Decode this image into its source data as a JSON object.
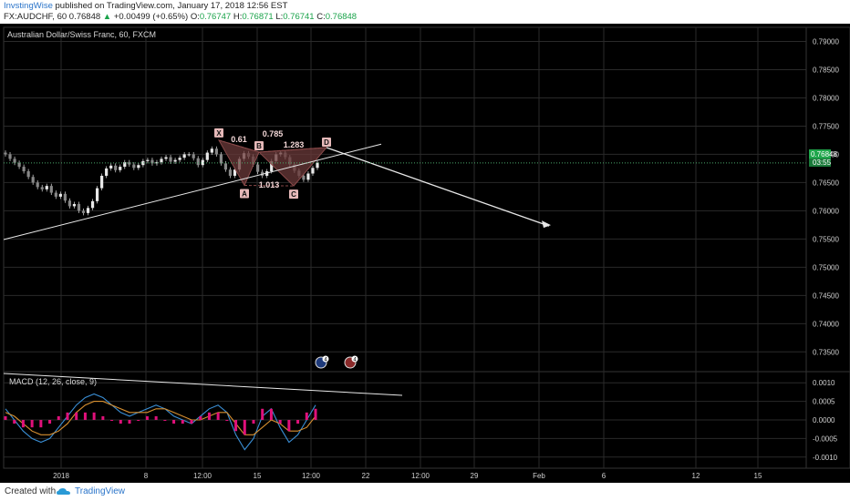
{
  "header": {
    "author": "InvstingWise",
    "published_text": "published on TradingView.com, January 17, 2018 12:56 EST",
    "symbol": "FX:AUDCHF, 60",
    "last_price": "0.76848",
    "change": "+0.00499 (+0.65%)",
    "open_label": "O:",
    "open": "0.76747",
    "high_label": "H:",
    "high": "0.76871",
    "low_label": "L:",
    "low": "0.76741",
    "close_label": "C:",
    "close": "0.76848"
  },
  "chart_title": "Australian Dollar/Swiss Franc, 60, FXCM",
  "price_tag": "0.76848",
  "countdown": "03:55",
  "pattern": {
    "points": {
      "X": "X",
      "A": "A",
      "B": "B",
      "C": "C",
      "D": "D"
    },
    "ratios": {
      "xb": "0.61",
      "ac": "1.013",
      "bd": "0.785",
      "cd": "1.283"
    }
  },
  "event_badges": [
    "4",
    "4"
  ],
  "macd_label": "MACD (12, 26, close, 9)",
  "footer": {
    "created_with": "Created with",
    "brand": "TradingView"
  },
  "colors": {
    "background": "#000000",
    "grid": "#2a2a2a",
    "candle": "#c8c8c8",
    "pattern_fill": "#6b3a3a",
    "macd_line": "#3a8fd6",
    "signal_line": "#d89030",
    "histogram": "#e0107a",
    "trend_line": "#e8e8e8",
    "last_price_tag": "#1fa64b"
  },
  "chart_data": {
    "type": "line",
    "title": "Australian Dollar/Swiss Franc, 60, FXCM",
    "price_axis": {
      "ticks": [
        "0.79000",
        "0.78500",
        "0.78000",
        "0.77500",
        "0.77000",
        "0.76500",
        "0.76000",
        "0.75500",
        "0.75000",
        "0.74500",
        "0.74000",
        "0.73500"
      ],
      "ylim": [
        0.7315,
        0.7925
      ]
    },
    "macd_axis": {
      "ticks": [
        "0.0010",
        "0.0005",
        "0.0000",
        "-0.0005",
        "-0.0010"
      ],
      "ylim": [
        -0.0013,
        0.0013
      ]
    },
    "time_axis": [
      "2018",
      "8",
      "12:00",
      "15",
      "12:00",
      "22",
      "12:00",
      "29",
      "Feb",
      "6",
      "12",
      "15"
    ],
    "price_close_approx": [
      0.77,
      0.7692,
      0.7685,
      0.7678,
      0.767,
      0.766,
      0.765,
      0.7642,
      0.7638,
      0.7644,
      0.7632,
      0.7625,
      0.763,
      0.7618,
      0.7608,
      0.7612,
      0.76,
      0.7596,
      0.7605,
      0.7617,
      0.764,
      0.7662,
      0.7675,
      0.768,
      0.7672,
      0.7678,
      0.7686,
      0.7682,
      0.7676,
      0.7681,
      0.7688,
      0.769,
      0.7684,
      0.7686,
      0.7692,
      0.7695,
      0.7687,
      0.769,
      0.7694,
      0.77,
      0.77,
      0.7693,
      0.7681,
      0.769,
      0.7703,
      0.771,
      0.77,
      0.7684,
      0.7673,
      0.7662,
      0.7673,
      0.7692,
      0.7702,
      0.7696,
      0.7682,
      0.7669,
      0.7662,
      0.767,
      0.7688,
      0.77,
      0.7703,
      0.7695,
      0.7682,
      0.7671,
      0.7662,
      0.7655,
      0.7666,
      0.7676,
      0.7685
    ],
    "pattern_prices": {
      "X": 0.7725,
      "A": 0.7645,
      "B": 0.7704,
      "C": 0.7644,
      "D": 0.7712
    },
    "trend_lines": [
      {
        "name": "support",
        "from": [
          0.7549,
          "start"
        ],
        "to": [
          0.7718,
          "future"
        ]
      },
      {
        "name": "projection",
        "from": [
          0.7712,
          "D"
        ],
        "to": [
          0.7573,
          "future"
        ]
      }
    ],
    "macd_series": [
      {
        "name": "MACD",
        "values": [
          0.0003,
          0.0,
          -0.0003,
          -0.0005,
          -0.0006,
          -0.0005,
          -0.0002,
          0.0001,
          0.0004,
          0.0006,
          0.0007,
          0.0006,
          0.0004,
          0.0002,
          0.0001,
          0.0002,
          0.0003,
          0.0004,
          0.0003,
          0.0001,
          0.0,
          -0.0001,
          0.0001,
          0.0003,
          0.0004,
          0.0002,
          -0.0004,
          -0.0008,
          -0.0005,
          0.0001,
          0.0003,
          -0.0002,
          -0.0006,
          -0.0004,
          0.0,
          0.0004
        ]
      },
      {
        "name": "Signal",
        "values": [
          0.0002,
          0.0001,
          -0.0001,
          -0.0003,
          -0.0004,
          -0.0004,
          -0.0003,
          -0.0001,
          0.0002,
          0.0004,
          0.0005,
          0.0005,
          0.0004,
          0.0003,
          0.0002,
          0.0002,
          0.0002,
          0.0003,
          0.0003,
          0.0002,
          0.0001,
          0.0,
          0.0,
          0.0001,
          0.0002,
          0.0002,
          -0.0001,
          -0.0004,
          -0.0004,
          -0.0002,
          0.0,
          -0.0001,
          -0.0003,
          -0.0003,
          -0.0002,
          0.0001
        ]
      }
    ],
    "grid": true
  }
}
